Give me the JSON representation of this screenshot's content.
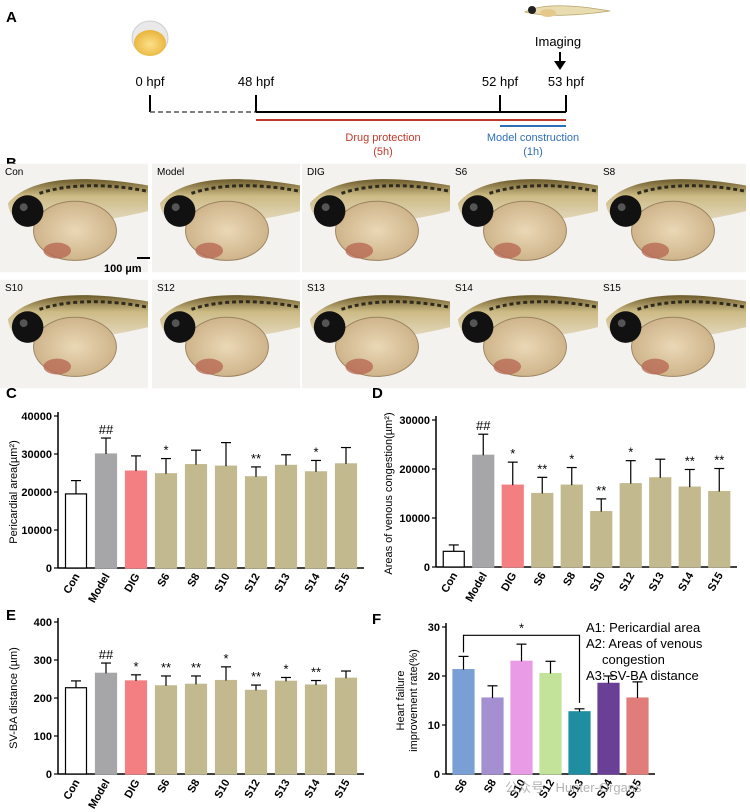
{
  "panel_a": {
    "label": "A",
    "time_points": [
      "0 hpf",
      "48 hpf",
      "52 hpf",
      "53 hpf"
    ],
    "imaging_label": "Imaging",
    "drug_protection": "Drug protection",
    "drug_duration": "(5h)",
    "model_construction": "Model construction",
    "model_duration": "(1h)",
    "colors": {
      "drug": "#c0392b",
      "model": "#2e6fb7"
    }
  },
  "panel_b": {
    "label": "B",
    "images": [
      "Con",
      "Model",
      "DIG",
      "S6",
      "S8",
      "S10",
      "S12",
      "S13",
      "S14",
      "S15"
    ],
    "scale_bar": "100 µm"
  },
  "watermark": "公众号 · Hunter-Organs",
  "chart_data": [
    {
      "panel": "C",
      "type": "bar",
      "ylabel": "Pericardial area(µm²)",
      "ylim": [
        0,
        40000
      ],
      "yticks": [
        0,
        10000,
        20000,
        30000,
        40000
      ],
      "categories": [
        "Con",
        "Model",
        "DIG",
        "S6",
        "S8",
        "S10",
        "S12",
        "S13",
        "S14",
        "S15"
      ],
      "values": [
        19500,
        30000,
        25500,
        24800,
        27200,
        26800,
        24000,
        27000,
        25300,
        27400
      ],
      "errors": [
        3500,
        4200,
        4000,
        4000,
        3800,
        6200,
        2600,
        2800,
        3000,
        4300
      ],
      "annotations": [
        "",
        "##",
        "",
        "*",
        "",
        "",
        "**",
        "",
        "*",
        ""
      ],
      "colors": [
        "#ffffff",
        "#a6a6a8",
        "#f47f83",
        "#c2b98e",
        "#c2b98e",
        "#c2b98e",
        "#c2b98e",
        "#c2b98e",
        "#c2b98e",
        "#c2b98e"
      ]
    },
    {
      "panel": "D",
      "type": "bar",
      "ylabel": "Areas of venous congestion(µm²)",
      "ylim": [
        0,
        30000
      ],
      "yticks": [
        0,
        10000,
        20000,
        30000
      ],
      "categories": [
        "Con",
        "Model",
        "DIG",
        "S6",
        "S8",
        "S10",
        "S12",
        "S13",
        "S14",
        "S15"
      ],
      "values": [
        3200,
        22800,
        16700,
        15000,
        16700,
        11300,
        17000,
        18200,
        16300,
        15400
      ],
      "errors": [
        1300,
        4300,
        4700,
        3300,
        3600,
        2600,
        4700,
        3800,
        3600,
        4700
      ],
      "annotations": [
        "",
        "##",
        "*",
        "**",
        "*",
        "**",
        "*",
        "",
        "**",
        "**"
      ],
      "colors": [
        "#ffffff",
        "#a6a6a8",
        "#f47f83",
        "#c2b98e",
        "#c2b98e",
        "#c2b98e",
        "#c2b98e",
        "#c2b98e",
        "#c2b98e",
        "#c2b98e"
      ]
    },
    {
      "panel": "E",
      "type": "bar",
      "ylabel": "SV-BA distance (µm)",
      "ylim": [
        0,
        400
      ],
      "yticks": [
        0,
        100,
        200,
        300,
        400
      ],
      "categories": [
        "Con",
        "Model",
        "DIG",
        "S6",
        "S8",
        "S10",
        "S12",
        "S13",
        "S14",
        "S15"
      ],
      "values": [
        227,
        265,
        245,
        232,
        236,
        246,
        220,
        244,
        234,
        252
      ],
      "errors": [
        18,
        27,
        16,
        26,
        22,
        36,
        14,
        10,
        12,
        19
      ],
      "annotations": [
        "",
        "##",
        "*",
        "**",
        "**",
        "*",
        "**",
        "*",
        "**",
        ""
      ],
      "colors": [
        "#ffffff",
        "#a6a6a8",
        "#f47f83",
        "#c2b98e",
        "#c2b98e",
        "#c2b98e",
        "#c2b98e",
        "#c2b98e",
        "#c2b98e",
        "#c2b98e"
      ]
    },
    {
      "panel": "F",
      "type": "bar",
      "ylabel": "Heart failure improvement rate(%)",
      "ylim": [
        0,
        30
      ],
      "yticks": [
        0,
        10,
        20,
        30
      ],
      "categories": [
        "S6",
        "S8",
        "S10",
        "S12",
        "S13",
        "S14",
        "S15"
      ],
      "values": [
        21.3,
        15.5,
        23.0,
        20.5,
        12.7,
        18.5,
        15.5
      ],
      "errors": [
        2.7,
        2.5,
        3.5,
        2.5,
        0.6,
        1.5,
        3.3
      ],
      "colors": [
        "#7a9fd4",
        "#a48fd0",
        "#e99be6",
        "#c3e39b",
        "#1f8ea0",
        "#6a3f96",
        "#e07c7a"
      ],
      "bracket": {
        "from": "S6",
        "to": "S13",
        "label": "*"
      },
      "legend": [
        "A1: Pericardial area",
        "A2: Areas of venous",
        "congestion",
        "A3: SV-BA distance"
      ]
    }
  ]
}
